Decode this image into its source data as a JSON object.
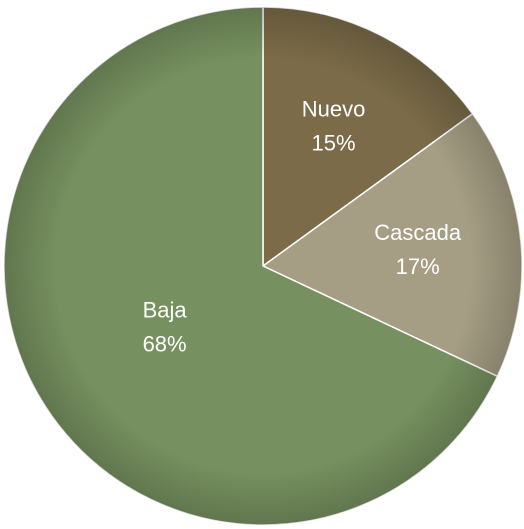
{
  "chart_data": {
    "type": "pie",
    "categories": [
      "Nuevo",
      "Cascada",
      "Baja"
    ],
    "values": [
      15,
      17,
      68
    ],
    "value_labels": [
      "15%",
      "17%",
      "68%"
    ],
    "colors": [
      "#7b6b48",
      "#a59e84",
      "#76905f"
    ]
  }
}
